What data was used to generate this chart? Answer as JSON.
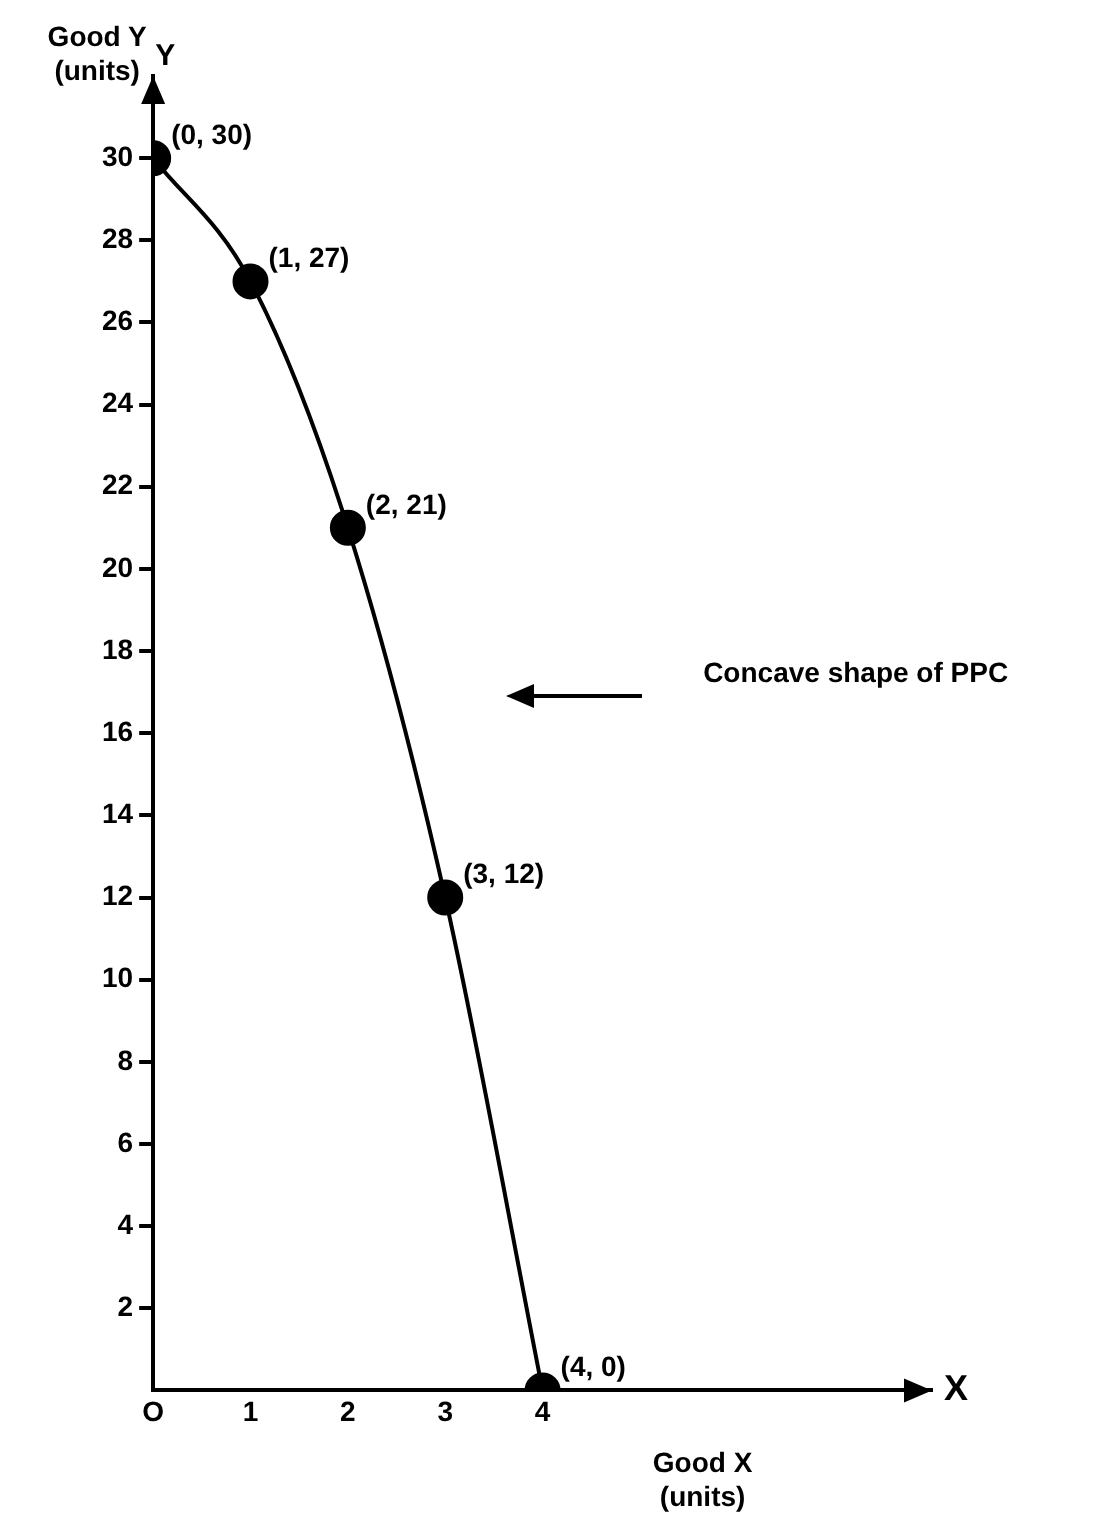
{
  "chart_data": {
    "type": "line",
    "xlabel": "Good X\n(units)",
    "ylabel": "Good Y\n(units)",
    "x": [
      0,
      1,
      2,
      3,
      4
    ],
    "series": [
      {
        "color": "#000000",
        "values": [
          30,
          27,
          21,
          12,
          0
        ],
        "value_labels": [
          "(0, 30)",
          "(1, 27)",
          "(2, 21)",
          "(3, 12)",
          "(4, 0)"
        ]
      }
    ],
    "xlim": [
      0,
      8
    ],
    "xticks": [
      {
        "value": 0,
        "label": "O"
      },
      1,
      2,
      3,
      4
    ],
    "ylim": [
      0,
      32
    ],
    "yticks": [
      2,
      4,
      6,
      8,
      10,
      12,
      14,
      16,
      18,
      20,
      22,
      24,
      26,
      28,
      30
    ],
    "marker": "circle",
    "line_style": "solid",
    "annotations": [
      "Concave shape of PPC",
      "X",
      "Y"
    ]
  }
}
